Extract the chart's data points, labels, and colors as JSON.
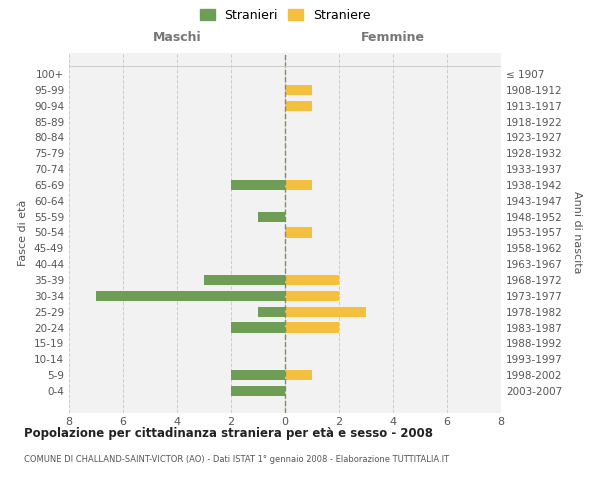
{
  "age_groups": [
    "100+",
    "95-99",
    "90-94",
    "85-89",
    "80-84",
    "75-79",
    "70-74",
    "65-69",
    "60-64",
    "55-59",
    "50-54",
    "45-49",
    "40-44",
    "35-39",
    "30-34",
    "25-29",
    "20-24",
    "15-19",
    "10-14",
    "5-9",
    "0-4"
  ],
  "birth_years": [
    "≤ 1907",
    "1908-1912",
    "1913-1917",
    "1918-1922",
    "1923-1927",
    "1928-1932",
    "1933-1937",
    "1938-1942",
    "1943-1947",
    "1948-1952",
    "1953-1957",
    "1958-1962",
    "1963-1967",
    "1968-1972",
    "1973-1977",
    "1978-1982",
    "1983-1987",
    "1988-1992",
    "1993-1997",
    "1998-2002",
    "2003-2007"
  ],
  "maschi": [
    0,
    0,
    0,
    0,
    0,
    0,
    0,
    2,
    0,
    1,
    0,
    0,
    0,
    3,
    7,
    1,
    2,
    0,
    0,
    2,
    2
  ],
  "femmine": [
    0,
    1,
    1,
    0,
    0,
    0,
    0,
    1,
    0,
    0,
    1,
    0,
    0,
    2,
    2,
    3,
    2,
    0,
    0,
    1,
    0
  ],
  "maschi_color": "#6e9e56",
  "femmine_color": "#f5c040",
  "grid_color": "#cccccc",
  "background_color": "#f2f2f2",
  "title": "Popolazione per cittadinanza straniera per età e sesso - 2008",
  "subtitle": "COMUNE DI CHALLAND-SAINT-VICTOR (AO) - Dati ISTAT 1° gennaio 2008 - Elaborazione TUTTITALIA.IT",
  "ylabel_left": "Fasce di età",
  "ylabel_right": "Anni di nascita",
  "legend_maschi": "Stranieri",
  "legend_femmine": "Straniere",
  "xlim": 8,
  "maschi_label": "Maschi",
  "femmine_label": "Femmine"
}
